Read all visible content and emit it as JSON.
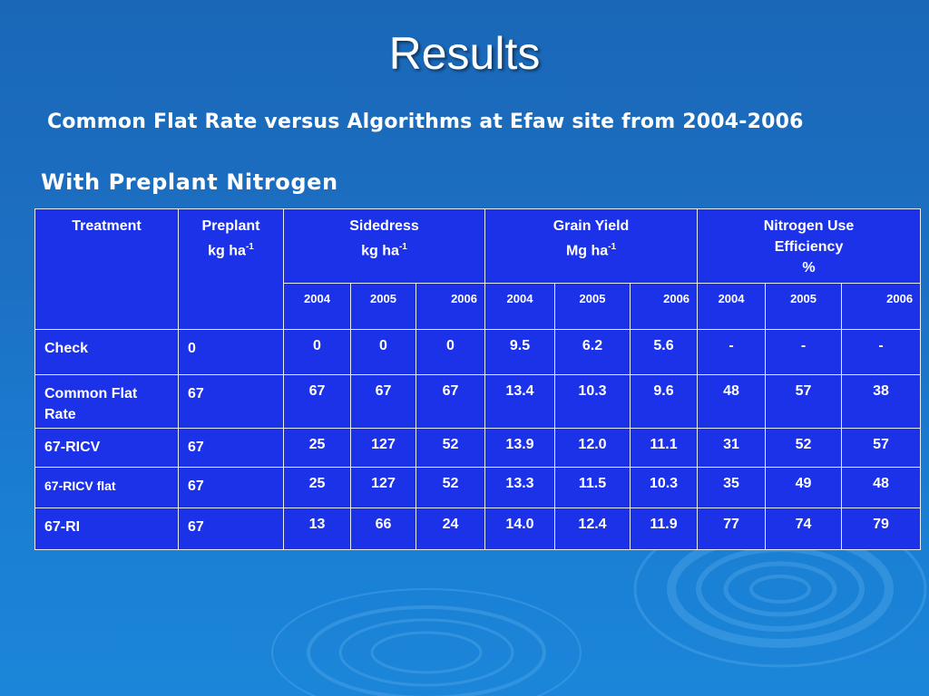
{
  "title": "Results",
  "subtitle": "Common Flat Rate versus Algorithms at Efaw site from 2004-2006",
  "section_heading": "With Preplant Nitrogen",
  "table": {
    "headers": {
      "treatment": "Treatment",
      "preplant_line1": "Preplant",
      "preplant_line2": "kg ha",
      "preplant_sup": "-1",
      "sidedress_line1": "Sidedress",
      "sidedress_line2": "kg ha",
      "sidedress_sup": "-1",
      "yield_line1": "Grain Yield",
      "yield_line2": "Mg ha",
      "yield_sup": "-1",
      "nue_line1": "Nitrogen Use",
      "nue_line2": "Efficiency",
      "nue_line3": "%"
    },
    "years": [
      "2004",
      "2005",
      "2006",
      "2004",
      "2005",
      "2006",
      "2004",
      "2005",
      "2006"
    ],
    "rows": [
      {
        "treatment": "Check",
        "preplant": "0",
        "sidedress": [
          "0",
          "0",
          "0"
        ],
        "yield": [
          "9.5",
          "6.2",
          "5.6"
        ],
        "nue": [
          "-",
          "-",
          "-"
        ]
      },
      {
        "treatment": "Common Flat Rate",
        "preplant": "67",
        "sidedress": [
          "67",
          "67",
          "67"
        ],
        "yield": [
          "13.4",
          "10.3",
          "9.6"
        ],
        "nue": [
          "48",
          "57",
          "38"
        ]
      },
      {
        "treatment": "67-RICV",
        "preplant": "67",
        "sidedress": [
          "25",
          "127",
          "52"
        ],
        "yield": [
          "13.9",
          "12.0",
          "11.1"
        ],
        "nue": [
          "31",
          "52",
          "57"
        ]
      },
      {
        "treatment": "67-RICV flat",
        "preplant": "67",
        "sidedress": [
          "25",
          "127",
          "52"
        ],
        "yield": [
          "13.3",
          "11.5",
          "10.3"
        ],
        "nue": [
          "35",
          "49",
          "48"
        ]
      },
      {
        "treatment": "67-RI",
        "preplant": "67",
        "sidedress": [
          "13",
          "66",
          "24"
        ],
        "yield": [
          "14.0",
          "12.4",
          "11.9"
        ],
        "nue": [
          "77",
          "74",
          "79"
        ]
      }
    ]
  },
  "colors": {
    "background": "#1a70c4",
    "table_fill": "#1c32e8",
    "border": "#e6ecff",
    "text": "#ffffff"
  }
}
